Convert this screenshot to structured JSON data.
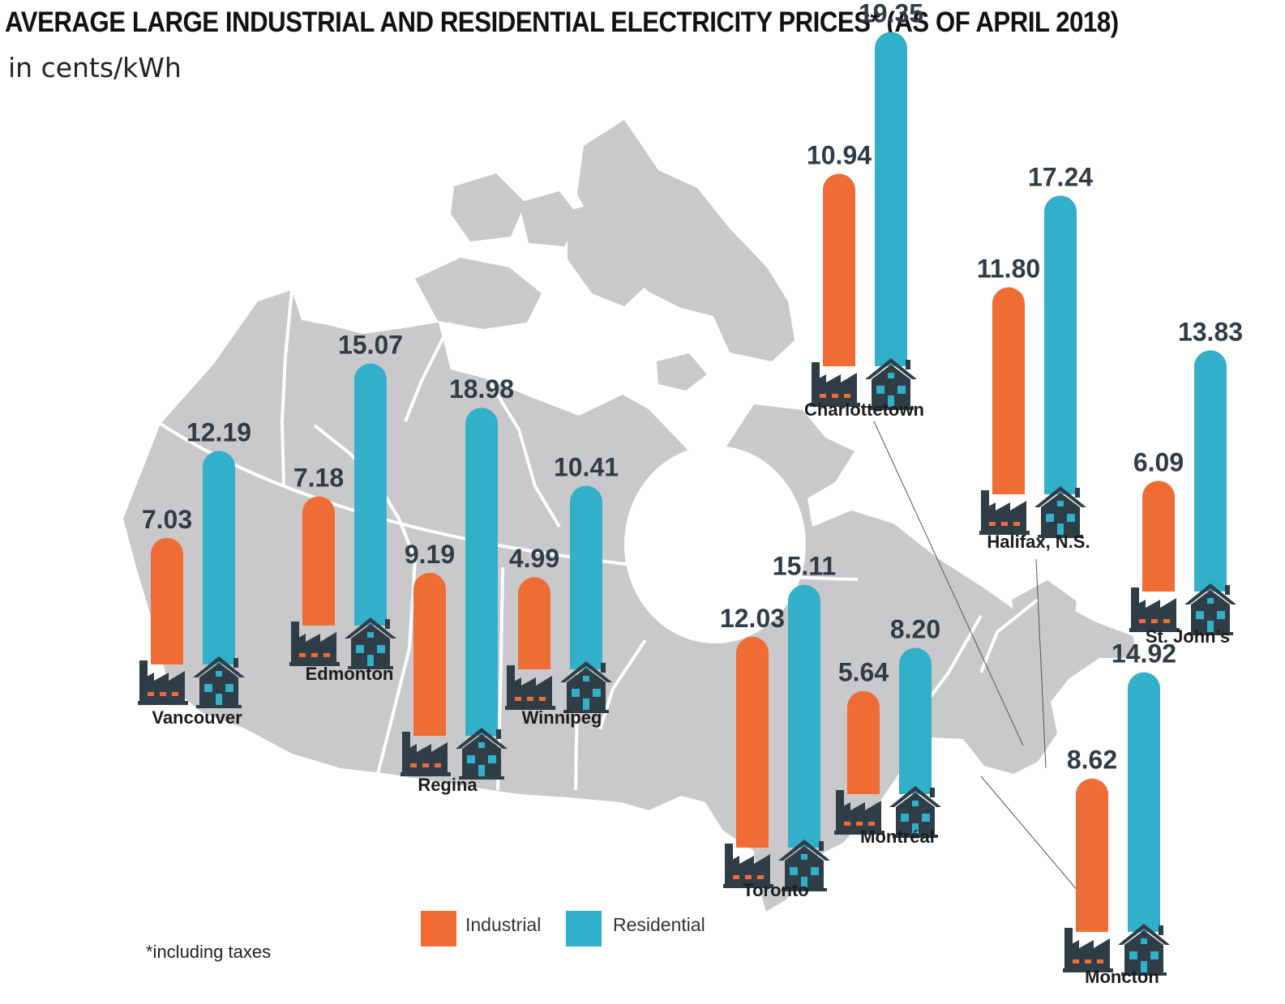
{
  "title": "AVERAGE LARGE INDUSTRIAL AND RESIDENTIAL ELECTRICITY PRICES* (AS OF APRIL 2018)",
  "subtitle": "in cents/kWh",
  "footnote": "*including taxes",
  "colors": {
    "industrial": "#ef6d35",
    "residential": "#32afc9",
    "map": "#c9c9cb",
    "icon": "#2f3d47"
  },
  "icons": {
    "industrial": "factory-icon",
    "residential": "house-icon"
  },
  "chart_data": {
    "type": "bar",
    "categories": [
      "Vancouver",
      "Edmonton",
      "Regina",
      "Winnipeg",
      "Toronto",
      "Montréal",
      "Charlottetown",
      "Halifax, N.S.",
      "St. John’s",
      "Moncton"
    ],
    "series": [
      {
        "name": "Industrial",
        "values": [
          7.03,
          7.18,
          9.19,
          4.99,
          12.03,
          5.64,
          10.94,
          11.8,
          6.09,
          8.62
        ],
        "labels": [
          "7.03",
          "7.18",
          "9.19",
          "4.99",
          "12.03",
          "5.64",
          "10.94",
          "11.80",
          "6.09",
          "8.62"
        ]
      },
      {
        "name": "Residential",
        "values": [
          12.19,
          15.07,
          18.98,
          10.41,
          15.11,
          8.2,
          19.35,
          17.24,
          13.83,
          14.92
        ],
        "labels": [
          "12.19",
          "15.07",
          "18.98",
          "10.41",
          "15.11",
          "8.20",
          "19.35",
          "17.24",
          "13.83",
          "14.92"
        ]
      }
    ],
    "legend": [
      "Industrial",
      "Residential"
    ],
    "legend_position": "bottom-center",
    "background": "map of Canada"
  }
}
